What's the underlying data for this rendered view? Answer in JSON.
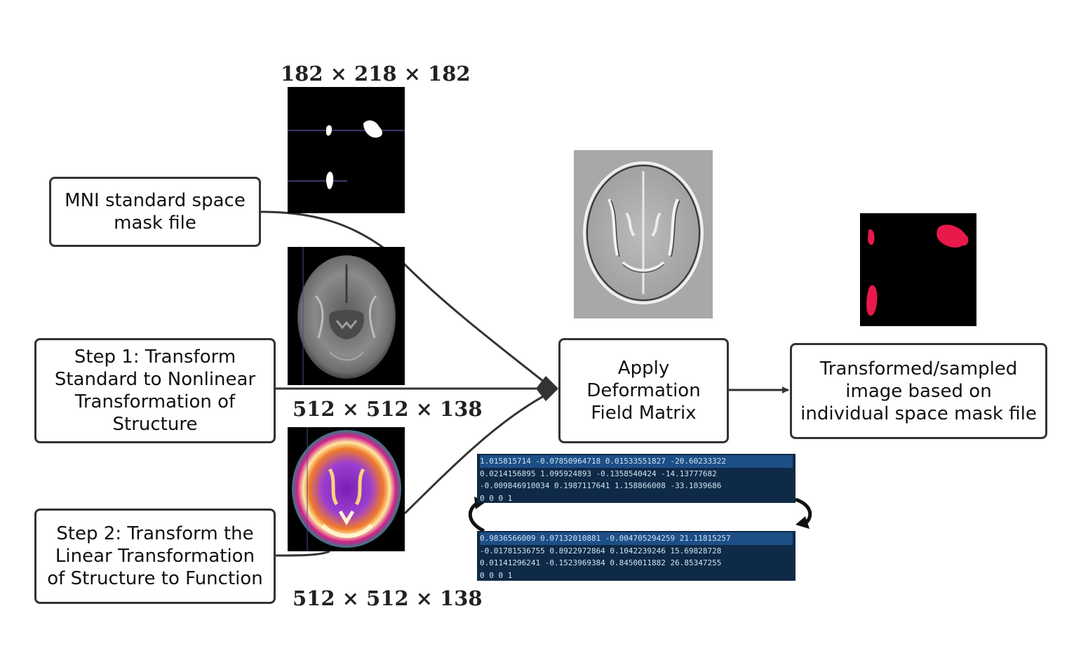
{
  "boxes": {
    "mni_mask": "MNI standard space\nmask file",
    "step1": "Step 1: Transform\nStandard to Nonlinear\nTransformation of\nStructure",
    "step2": "Step 2: Transform the\nLinear Transformation\nof Structure to Function",
    "apply": "Apply\nDeformation\nField Matrix",
    "result": "Transformed/sampled\nimage based on\nindividual space mask file"
  },
  "dimensions": {
    "mask": "182 × 218 × 182",
    "structural": "512 × 512 × 138",
    "functional": "512 × 512 × 138"
  },
  "matrices": {
    "upper": [
      "1.015815714   -0.07850964718   0.01533551827   -20.60233322",
      "0.0214156895   1.095924893   -0.1358540424   -14.13777682",
      "-0.009846910034   0.1987117641   1.158866008   -33.1039686",
      "0   0   0   1"
    ],
    "lower": [
      "0.9836566009   0.07132010881   -0.004705294259   21.11815257",
      "-0.01781536755   0.8922972864   0.1042239246   15.69828728",
      "0.01141296241   -0.1523969384   0.8450011882   26.85347255",
      "0   0   0   1"
    ]
  },
  "colors": {
    "mask_highlight": "#e8194b",
    "box_border": "#333333",
    "matrix_bg": "#0f2a46"
  }
}
